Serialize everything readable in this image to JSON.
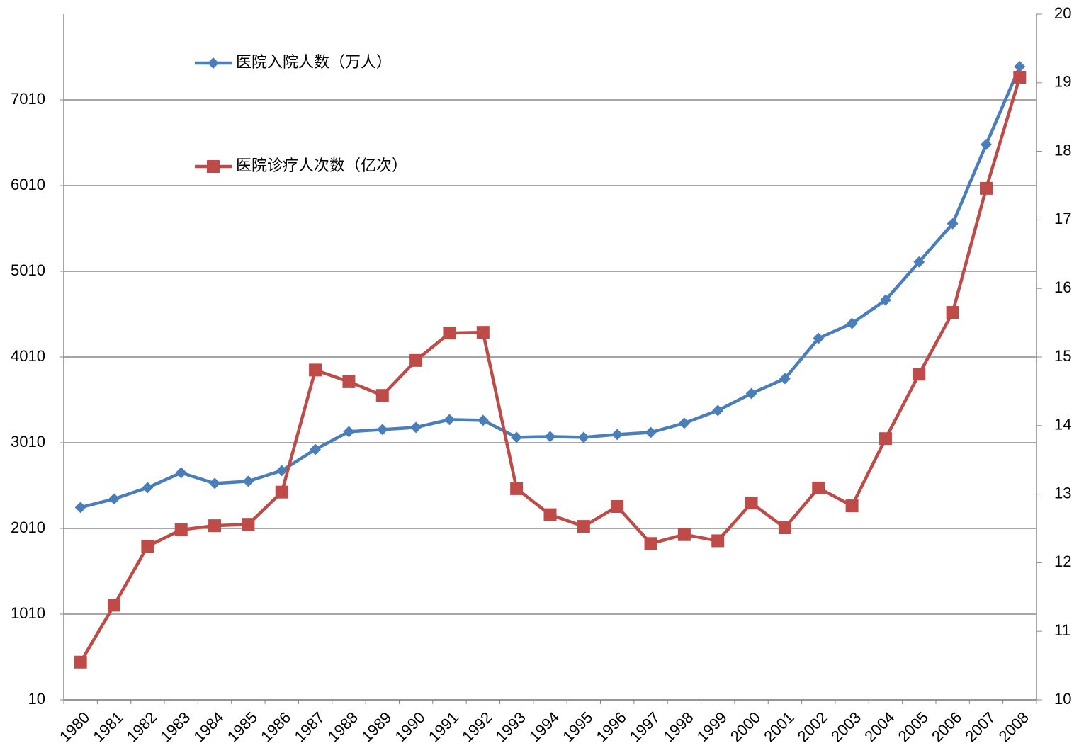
{
  "chart_data": {
    "type": "line",
    "categories": [
      "1980",
      "1981",
      "1982",
      "1983",
      "1984",
      "1985",
      "1986",
      "1987",
      "1988",
      "1989",
      "1990",
      "1991",
      "1992",
      "1993",
      "1994",
      "1995",
      "1996",
      "1997",
      "1998",
      "1999",
      "2000",
      "2001",
      "2002",
      "2003",
      "2004",
      "2005",
      "2006",
      "2007",
      "2008"
    ],
    "series": [
      {
        "name": "医院入院人数（万人）",
        "color": "#4a7ebb",
        "marker": "diamond",
        "values": [
          2255,
          2354,
          2486,
          2660,
          2536,
          2561,
          2685,
          2932,
          3139,
          3164,
          3189,
          3280,
          3271,
          3073,
          3081,
          3073,
          3106,
          3130,
          3238,
          3386,
          3584,
          3758,
          4228,
          4402,
          4674,
          5120,
          5566,
          6490,
          7398
        ]
      },
      {
        "name": "医院诊疗人次数（亿次）",
        "color": "#be4b48",
        "marker": "square",
        "axis": "y2",
        "values": [
          10.55,
          11.38,
          12.24,
          12.48,
          12.54,
          12.56,
          13.03,
          14.81,
          14.64,
          14.44,
          14.95,
          15.35,
          15.36,
          13.08,
          12.7,
          12.53,
          12.82,
          12.28,
          12.41,
          12.32,
          12.87,
          12.51,
          13.09,
          12.83,
          13.81,
          14.75,
          15.65,
          17.46,
          19.08
        ]
      }
    ],
    "ylim": [
      10,
      8010
    ],
    "yticks": [
      10,
      1010,
      2010,
      3010,
      4010,
      5010,
      6010,
      7010
    ],
    "y2lim": [
      10,
      20
    ],
    "y2ticks": [
      10,
      11,
      12,
      13,
      14,
      15,
      16,
      17,
      18,
      19,
      20
    ],
    "grid": true
  }
}
